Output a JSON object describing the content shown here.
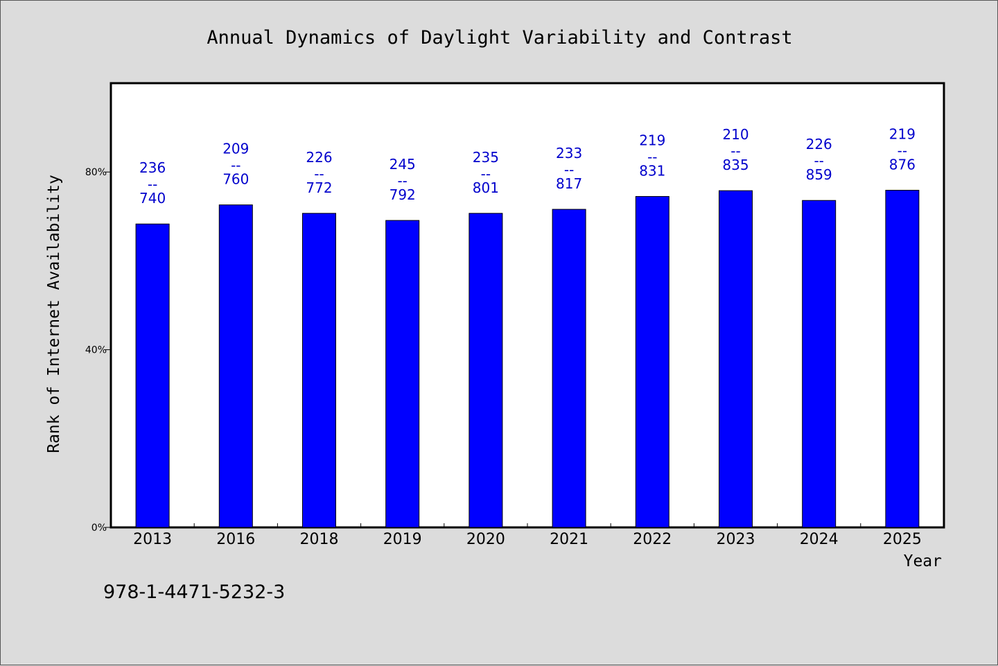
{
  "chart_data": {
    "type": "bar",
    "title": "Annual Dynamics of Daylight Variability and Contrast",
    "xlabel": "Year",
    "ylabel": "Rank of Internet Availability",
    "categories": [
      "2013",
      "2016",
      "2018",
      "2019",
      "2020",
      "2021",
      "2022",
      "2023",
      "2024",
      "2025"
    ],
    "values": [
      68.3,
      72.6,
      70.7,
      69.1,
      70.7,
      71.6,
      74.5,
      75.8,
      73.6,
      75.9
    ],
    "labels": [
      {
        "top": "236",
        "sep": "--",
        "bottom": "740"
      },
      {
        "top": "209",
        "sep": "--",
        "bottom": "760"
      },
      {
        "top": "226",
        "sep": "--",
        "bottom": "772"
      },
      {
        "top": "245",
        "sep": "--",
        "bottom": "792"
      },
      {
        "top": "235",
        "sep": "--",
        "bottom": "801"
      },
      {
        "top": "233",
        "sep": "--",
        "bottom": "817"
      },
      {
        "top": "219",
        "sep": "--",
        "bottom": "831"
      },
      {
        "top": "210",
        "sep": "--",
        "bottom": "835"
      },
      {
        "top": "226",
        "sep": "--",
        "bottom": "859"
      },
      {
        "top": "219",
        "sep": "--",
        "bottom": "876"
      }
    ],
    "yticks": [
      {
        "value": 0,
        "label": "0%"
      },
      {
        "value": 40,
        "label": "40%"
      },
      {
        "value": 80,
        "label": "80%"
      }
    ],
    "ylim": [
      0,
      100
    ],
    "bar_color": "#0000ff",
    "label_color": "#0000cc",
    "grid": false,
    "legend": "none"
  },
  "footer": {
    "text": "978-1-4471-5232-3"
  }
}
